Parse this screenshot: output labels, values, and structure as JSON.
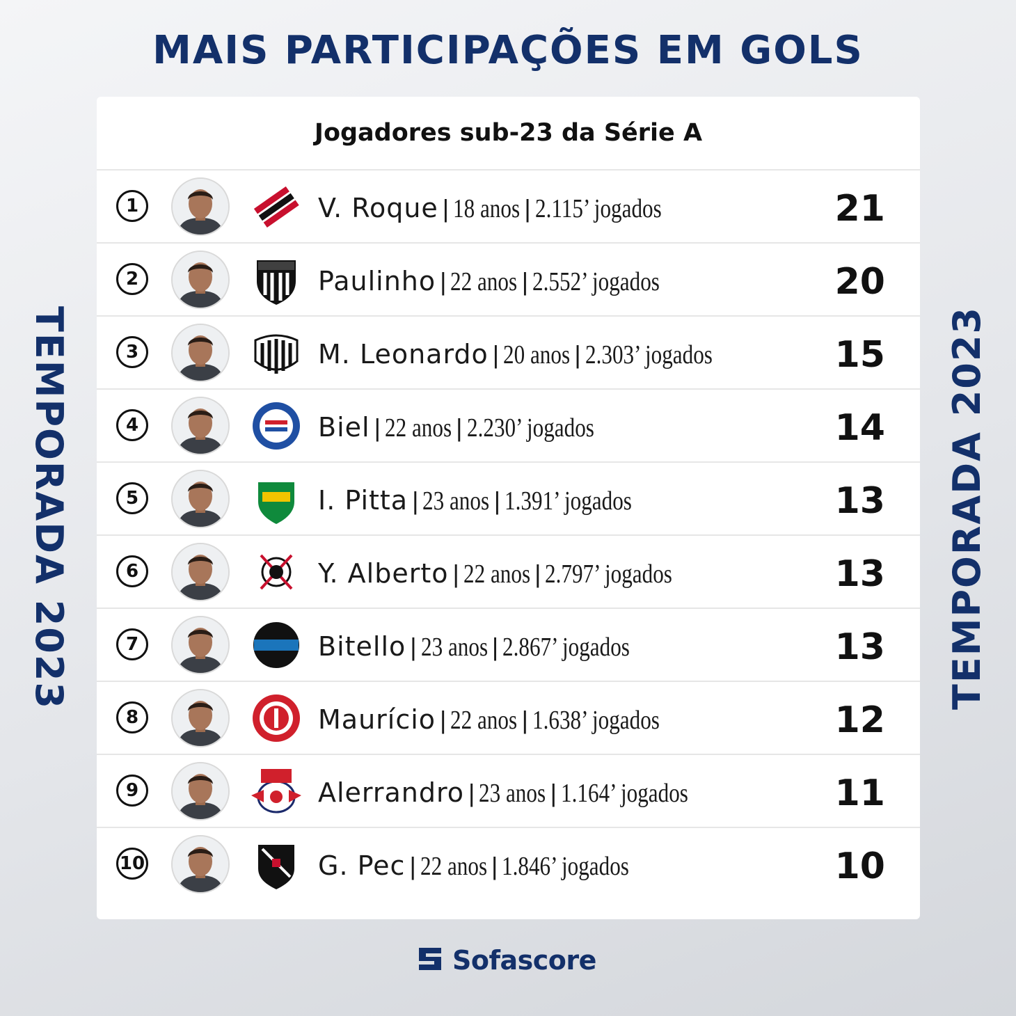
{
  "header": {
    "title": "MAIS PARTICIPAÇÕES EM GOLS",
    "side_label": "TEMPORADA 2023"
  },
  "card": {
    "subtitle": "Jogadores sub-23 da Série A"
  },
  "separator": "|",
  "players": [
    {
      "rank": "1",
      "name": "V. Roque",
      "age": "18 anos",
      "minutes": "2.115’ jogados",
      "value": "21",
      "club": "Athletico Paranaense",
      "crest_icon": "athletico-crest-icon",
      "crest_colors": [
        "#c8102e",
        "#111111"
      ]
    },
    {
      "rank": "2",
      "name": "Paulinho",
      "age": "22 anos",
      "minutes": "2.552’ jogados",
      "value": "20",
      "club": "Atlético Mineiro",
      "crest_icon": "atletico-mineiro-crest-icon",
      "crest_colors": [
        "#111111",
        "#ffffff"
      ]
    },
    {
      "rank": "3",
      "name": "M. Leonardo",
      "age": "20 anos",
      "minutes": "2.303’ jogados",
      "value": "15",
      "club": "Santos",
      "crest_icon": "santos-crest-icon",
      "crest_colors": [
        "#111111",
        "#ffffff"
      ]
    },
    {
      "rank": "4",
      "name": "Biel",
      "age": "22 anos",
      "minutes": "2.230’ jogados",
      "value": "14",
      "club": "Bahia",
      "crest_icon": "bahia-crest-icon",
      "crest_colors": [
        "#1f4fa3",
        "#d0202c"
      ]
    },
    {
      "rank": "5",
      "name": "I. Pitta",
      "age": "23 anos",
      "minutes": "1.391’ jogados",
      "value": "13",
      "club": "Cuiabá",
      "crest_icon": "cuiaba-crest-icon",
      "crest_colors": [
        "#0f8a3c",
        "#f2c400"
      ]
    },
    {
      "rank": "6",
      "name": "Y. Alberto",
      "age": "22 anos",
      "minutes": "2.797’ jogados",
      "value": "13",
      "club": "Corinthians",
      "crest_icon": "corinthians-crest-icon",
      "crest_colors": [
        "#c8102e",
        "#111111"
      ]
    },
    {
      "rank": "7",
      "name": "Bitello",
      "age": "23 anos",
      "minutes": "2.867’ jogados",
      "value": "13",
      "club": "Grêmio",
      "crest_icon": "gremio-crest-icon",
      "crest_colors": [
        "#1b75bb",
        "#111111"
      ]
    },
    {
      "rank": "8",
      "name": "Maurício",
      "age": "22 anos",
      "minutes": "1.638’ jogados",
      "value": "12",
      "club": "Internacional",
      "crest_icon": "internacional-crest-icon",
      "crest_colors": [
        "#d0202c",
        "#ffffff"
      ]
    },
    {
      "rank": "9",
      "name": "Alerrandro",
      "age": "23 anos",
      "minutes": "1.164’ jogados",
      "value": "11",
      "club": "Red Bull Bragantino",
      "crest_icon": "bragantino-crest-icon",
      "crest_colors": [
        "#d0202c",
        "#1b2a6b"
      ]
    },
    {
      "rank": "10",
      "name": "G. Pec",
      "age": "22 anos",
      "minutes": "1.846’ jogados",
      "value": "10",
      "club": "Vasco da Gama",
      "crest_icon": "vasco-crest-icon",
      "crest_colors": [
        "#111111",
        "#ffffff"
      ]
    }
  ],
  "footer": {
    "brand": "Sofascore",
    "brand_icon": "sofascore-logo-icon"
  },
  "colors": {
    "brand_navy": "#13306a",
    "text_dark": "#111111",
    "card_bg": "#ffffff",
    "divider": "#e6e6e6"
  }
}
